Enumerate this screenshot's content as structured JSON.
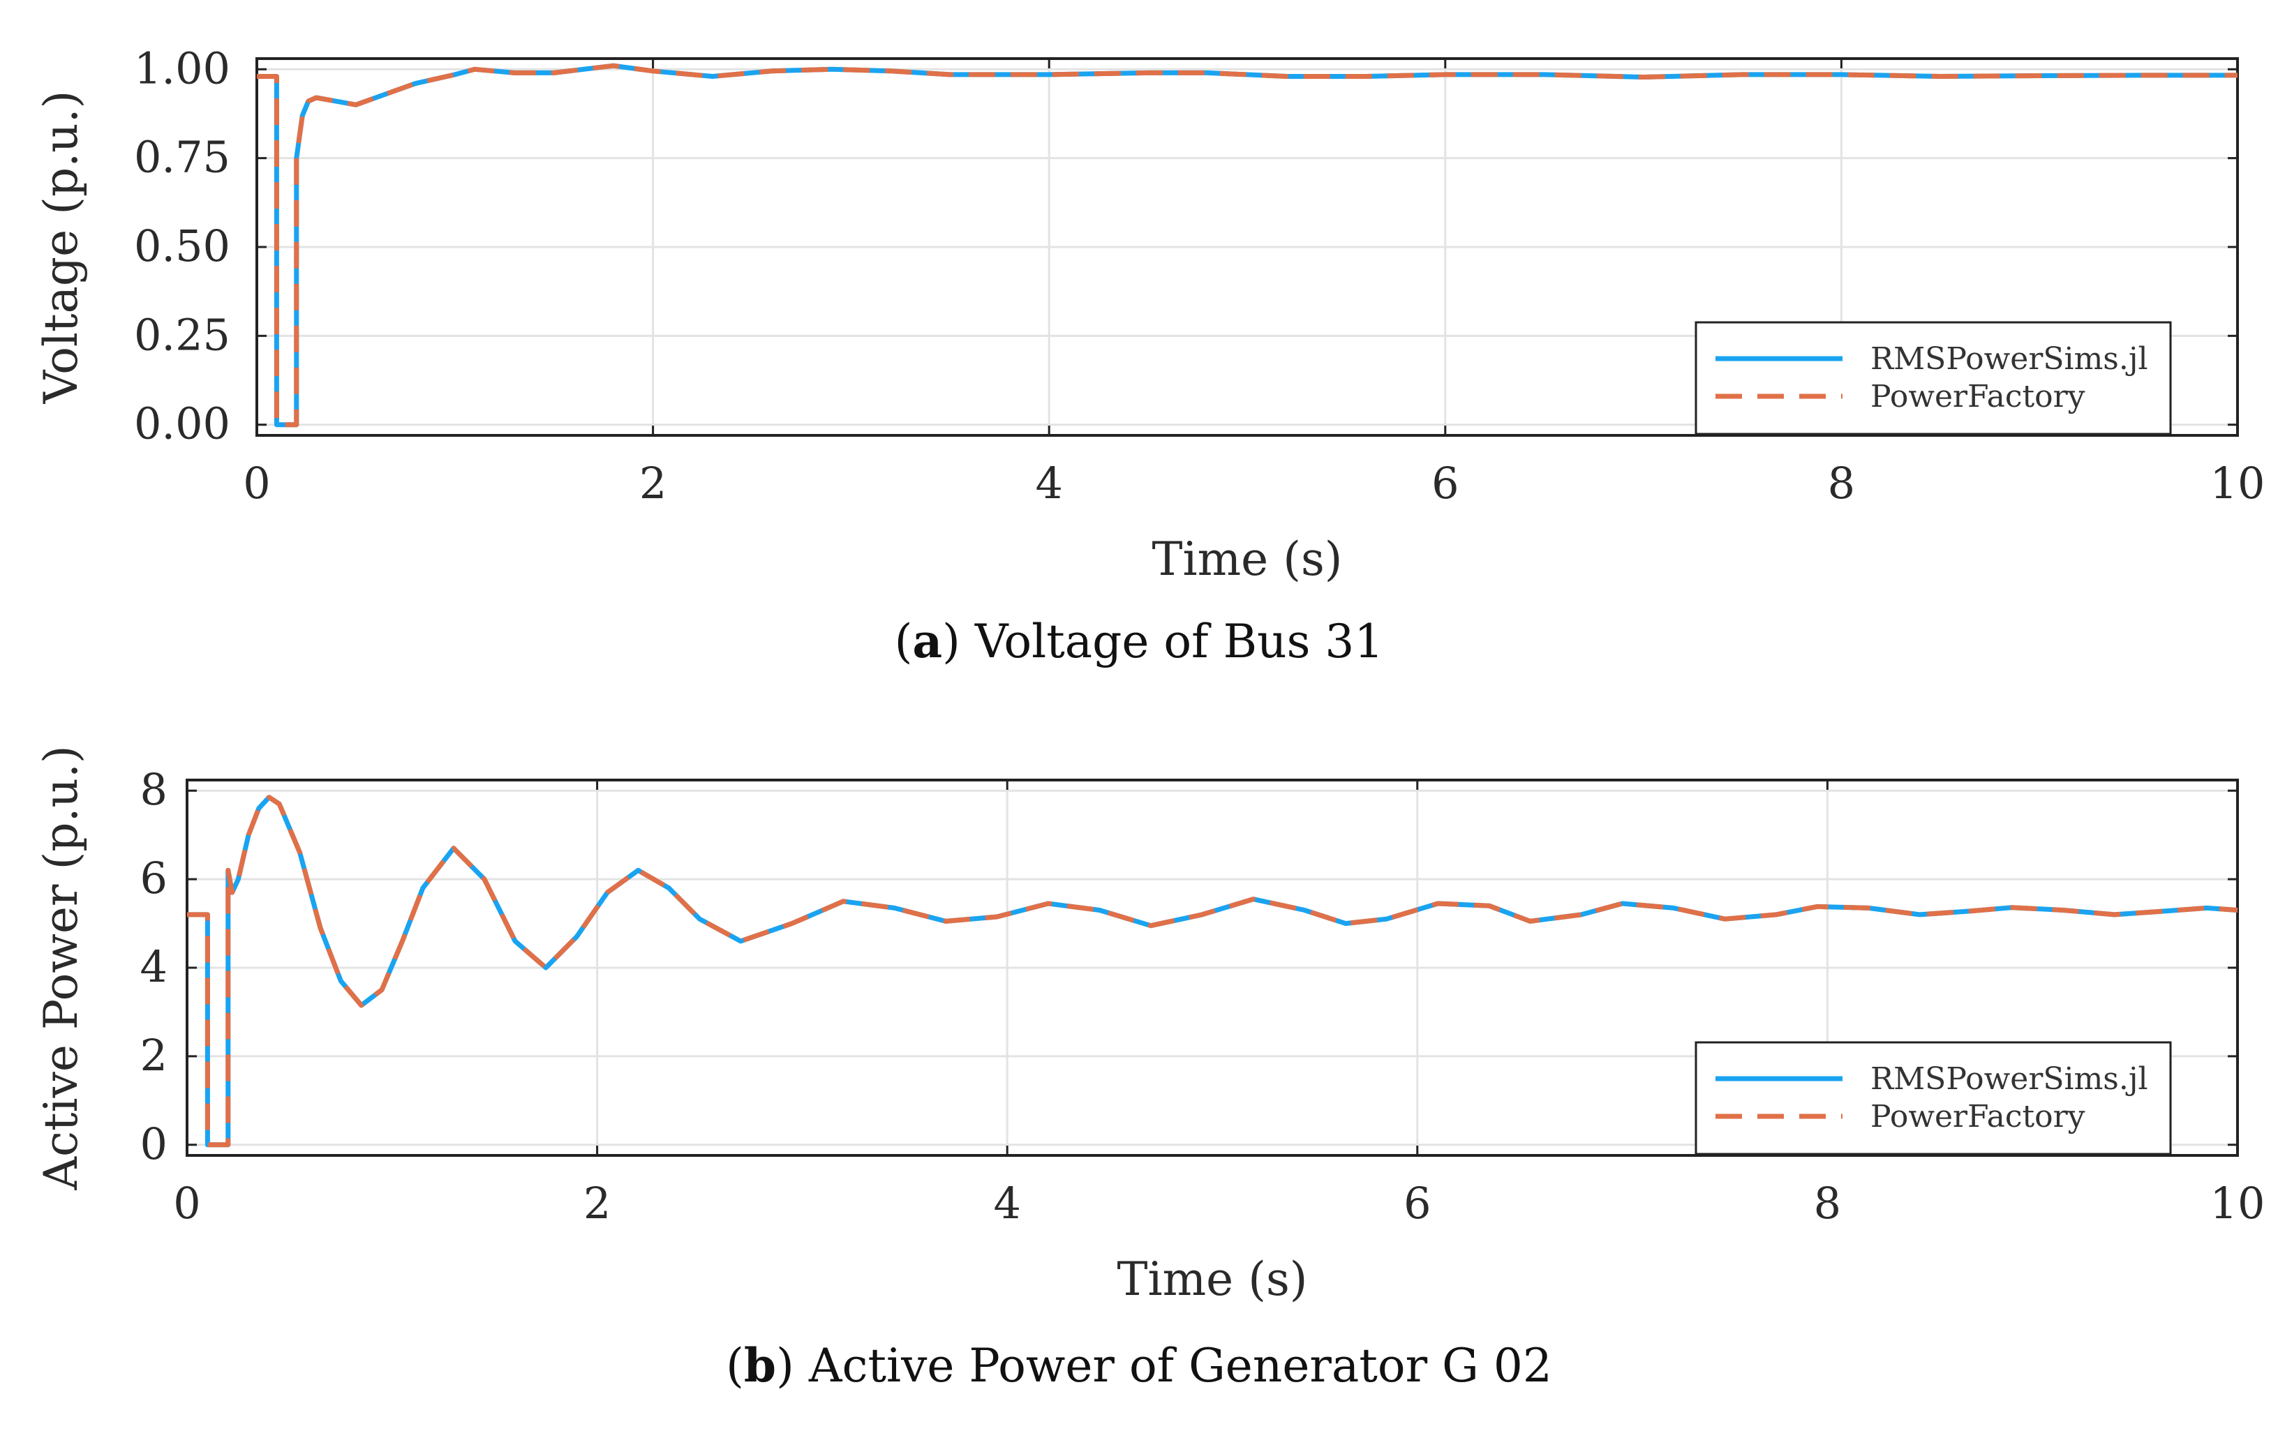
{
  "colors": {
    "series_blue": "#1aa3f0",
    "series_orange": "#e07048",
    "grid": "#e3e3e3",
    "frame": "#222222"
  },
  "captions": [
    {
      "label": "a",
      "text": "Voltage of Bus 31"
    },
    {
      "label": "b",
      "text": "Active Power of Generator G 02"
    }
  ],
  "chart_data": [
    {
      "type": "line",
      "xlabel": "Time (s)",
      "ylabel": "Voltage (p.u.)",
      "xlim": [
        0,
        10
      ],
      "ylim": [
        0,
        1
      ],
      "xticks": [
        0,
        2,
        4,
        6,
        8,
        10
      ],
      "yticks": [
        0,
        0.25,
        0.5,
        0.75,
        1.0
      ],
      "ytick_labels": [
        "0.00",
        "0.25",
        "0.50",
        "0.75",
        "1.00"
      ],
      "grid": true,
      "legend_position": "bottom-right",
      "series": [
        {
          "name": "RMSPowerSims.jl",
          "style": "solid",
          "x": [
            0,
            0.1,
            0.1,
            0.2,
            0.2,
            0.23,
            0.26,
            0.3,
            0.4,
            0.5,
            0.6,
            0.8,
            1.0,
            1.1,
            1.3,
            1.5,
            1.8,
            2.0,
            2.3,
            2.6,
            2.9,
            3.2,
            3.5,
            4.0,
            4.5,
            4.8,
            5.2,
            5.6,
            6.0,
            6.5,
            7.0,
            7.5,
            8.0,
            8.5,
            9.0,
            9.5,
            10.0
          ],
          "y": [
            0.98,
            0.98,
            0.0,
            0.0,
            0.75,
            0.87,
            0.91,
            0.92,
            0.91,
            0.9,
            0.92,
            0.96,
            0.985,
            1.0,
            0.99,
            0.99,
            1.01,
            0.995,
            0.98,
            0.995,
            1.0,
            0.995,
            0.985,
            0.985,
            0.99,
            0.99,
            0.98,
            0.98,
            0.985,
            0.985,
            0.978,
            0.985,
            0.985,
            0.98,
            0.982,
            0.983,
            0.983
          ]
        },
        {
          "name": "PowerFactory",
          "style": "dashed",
          "x": [
            0,
            0.1,
            0.1,
            0.2,
            0.2,
            0.23,
            0.26,
            0.3,
            0.4,
            0.5,
            0.6,
            0.8,
            1.0,
            1.1,
            1.3,
            1.5,
            1.8,
            2.0,
            2.3,
            2.6,
            2.9,
            3.2,
            3.5,
            4.0,
            4.5,
            4.8,
            5.2,
            5.6,
            6.0,
            6.5,
            7.0,
            7.5,
            8.0,
            8.5,
            9.0,
            9.5,
            10.0
          ],
          "y": [
            0.98,
            0.98,
            0.0,
            0.0,
            0.75,
            0.87,
            0.91,
            0.92,
            0.91,
            0.9,
            0.92,
            0.96,
            0.985,
            1.0,
            0.99,
            0.99,
            1.01,
            0.995,
            0.98,
            0.995,
            1.0,
            0.995,
            0.985,
            0.985,
            0.99,
            0.99,
            0.98,
            0.98,
            0.985,
            0.985,
            0.978,
            0.985,
            0.985,
            0.98,
            0.982,
            0.983,
            0.983
          ]
        }
      ]
    },
    {
      "type": "line",
      "xlabel": "Time (s)",
      "ylabel": "Active Power (p.u.)",
      "xlim": [
        0,
        10
      ],
      "ylim": [
        0,
        8
      ],
      "xticks": [
        0,
        2,
        4,
        6,
        8,
        10
      ],
      "yticks": [
        0,
        2,
        4,
        6,
        8
      ],
      "ytick_labels": [
        "0",
        "2",
        "4",
        "6",
        "8"
      ],
      "grid": true,
      "legend_position": "bottom-right",
      "series": [
        {
          "name": "RMSPowerSims.jl",
          "style": "solid",
          "x": [
            0,
            0.1,
            0.1,
            0.2,
            0.2,
            0.22,
            0.25,
            0.3,
            0.35,
            0.4,
            0.45,
            0.55,
            0.65,
            0.75,
            0.85,
            0.95,
            1.05,
            1.15,
            1.3,
            1.45,
            1.6,
            1.75,
            1.9,
            2.05,
            2.2,
            2.35,
            2.5,
            2.7,
            2.95,
            3.2,
            3.45,
            3.7,
            3.95,
            4.2,
            4.45,
            4.7,
            4.95,
            5.2,
            5.45,
            5.65,
            5.85,
            6.1,
            6.35,
            6.55,
            6.8,
            7.0,
            7.25,
            7.5,
            7.75,
            7.95,
            8.2,
            8.45,
            8.7,
            8.9,
            9.15,
            9.4,
            9.65,
            9.85,
            10.0
          ],
          "y": [
            5.2,
            5.2,
            0.0,
            0.0,
            6.2,
            5.7,
            6.0,
            7.0,
            7.6,
            7.85,
            7.7,
            6.6,
            4.9,
            3.7,
            3.15,
            3.5,
            4.6,
            5.8,
            6.7,
            6.0,
            4.6,
            4.0,
            4.7,
            5.7,
            6.2,
            5.8,
            5.1,
            4.6,
            5.0,
            5.5,
            5.35,
            5.05,
            5.15,
            5.45,
            5.3,
            4.95,
            5.2,
            5.55,
            5.3,
            5.0,
            5.1,
            5.45,
            5.4,
            5.05,
            5.2,
            5.45,
            5.35,
            5.1,
            5.2,
            5.38,
            5.35,
            5.2,
            5.28,
            5.36,
            5.3,
            5.2,
            5.28,
            5.35,
            5.3
          ]
        },
        {
          "name": "PowerFactory",
          "style": "dashed",
          "x": [
            0,
            0.1,
            0.1,
            0.2,
            0.2,
            0.22,
            0.25,
            0.3,
            0.35,
            0.4,
            0.45,
            0.55,
            0.65,
            0.75,
            0.85,
            0.95,
            1.05,
            1.15,
            1.3,
            1.45,
            1.6,
            1.75,
            1.9,
            2.05,
            2.2,
            2.35,
            2.5,
            2.7,
            2.95,
            3.2,
            3.45,
            3.7,
            3.95,
            4.2,
            4.45,
            4.7,
            4.95,
            5.2,
            5.45,
            5.65,
            5.85,
            6.1,
            6.35,
            6.55,
            6.8,
            7.0,
            7.25,
            7.5,
            7.75,
            7.95,
            8.2,
            8.45,
            8.7,
            8.9,
            9.15,
            9.4,
            9.65,
            9.85,
            10.0
          ],
          "y": [
            5.2,
            5.2,
            0.0,
            0.0,
            6.2,
            5.7,
            6.0,
            7.0,
            7.6,
            7.85,
            7.7,
            6.6,
            4.9,
            3.7,
            3.15,
            3.5,
            4.6,
            5.8,
            6.7,
            6.0,
            4.6,
            4.0,
            4.7,
            5.7,
            6.2,
            5.8,
            5.1,
            4.6,
            5.0,
            5.5,
            5.35,
            5.05,
            5.15,
            5.45,
            5.3,
            4.95,
            5.2,
            5.55,
            5.3,
            5.0,
            5.1,
            5.45,
            5.4,
            5.05,
            5.2,
            5.45,
            5.35,
            5.1,
            5.2,
            5.38,
            5.35,
            5.2,
            5.28,
            5.36,
            5.3,
            5.2,
            5.28,
            5.35,
            5.3
          ]
        }
      ]
    }
  ]
}
